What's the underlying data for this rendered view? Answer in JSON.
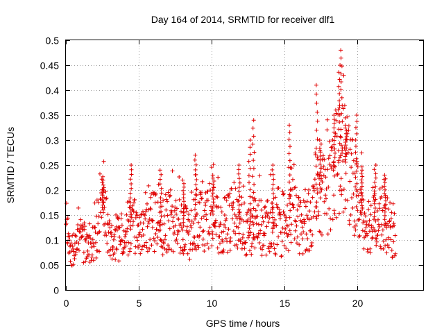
{
  "chart_data": {
    "type": "scatter",
    "title": "Day 164 of 2014, SRMTID for receiver dlf1",
    "xlabel": "GPS time / hours",
    "ylabel": "SRMTID / TECUs",
    "xlim": [
      0,
      24.5
    ],
    "ylim": [
      0,
      0.5
    ],
    "x_ticks": [
      0,
      5,
      10,
      15,
      20
    ],
    "x_tick_labels": [
      "0",
      "5",
      "10",
      "15",
      "20"
    ],
    "y_ticks": [
      0,
      0.05,
      0.1,
      0.15,
      0.2,
      0.25,
      0.3,
      0.35,
      0.4,
      0.45,
      0.5
    ],
    "y_tick_labels": [
      "0",
      "0.05",
      "0.1",
      "0.15",
      "0.2",
      "0.25",
      "0.3",
      "0.35",
      "0.4",
      "0.45",
      "0.5"
    ],
    "grid": true,
    "marker": "plus",
    "series_color": "#e00000",
    "series": [
      {
        "name": "dlf1",
        "profile": [
          [
            0.0,
            0.1
          ],
          [
            0.5,
            0.08
          ],
          [
            1.0,
            0.1
          ],
          [
            1.5,
            0.09
          ],
          [
            2.0,
            0.1
          ],
          [
            2.5,
            0.16
          ],
          [
            3.0,
            0.11
          ],
          [
            3.5,
            0.1
          ],
          [
            4.0,
            0.11
          ],
          [
            4.5,
            0.13
          ],
          [
            5.0,
            0.12
          ],
          [
            5.5,
            0.12
          ],
          [
            6.0,
            0.14
          ],
          [
            6.5,
            0.12
          ],
          [
            7.0,
            0.14
          ],
          [
            7.5,
            0.13
          ],
          [
            8.0,
            0.13
          ],
          [
            8.5,
            0.11
          ],
          [
            9.0,
            0.15
          ],
          [
            9.5,
            0.14
          ],
          [
            10.0,
            0.16
          ],
          [
            10.5,
            0.12
          ],
          [
            11.0,
            0.13
          ],
          [
            11.5,
            0.15
          ],
          [
            12.0,
            0.13
          ],
          [
            12.5,
            0.11
          ],
          [
            13.0,
            0.14
          ],
          [
            13.5,
            0.12
          ],
          [
            14.0,
            0.13
          ],
          [
            14.5,
            0.12
          ],
          [
            15.0,
            0.11
          ],
          [
            15.5,
            0.16
          ],
          [
            16.0,
            0.13
          ],
          [
            16.5,
            0.13
          ],
          [
            17.0,
            0.16
          ],
          [
            17.5,
            0.2
          ],
          [
            18.0,
            0.2
          ],
          [
            18.5,
            0.25
          ],
          [
            19.0,
            0.28
          ],
          [
            19.5,
            0.22
          ],
          [
            20.0,
            0.18
          ],
          [
            20.5,
            0.14
          ],
          [
            21.0,
            0.13
          ],
          [
            21.5,
            0.15
          ],
          [
            22.0,
            0.13
          ],
          [
            22.5,
            0.11
          ]
        ],
        "spikes": [
          [
            2.55,
            0.22
          ],
          [
            4.45,
            0.25
          ],
          [
            6.5,
            0.24
          ],
          [
            8.05,
            0.22
          ],
          [
            8.9,
            0.27
          ],
          [
            10.1,
            0.23
          ],
          [
            11.9,
            0.25
          ],
          [
            12.6,
            0.3
          ],
          [
            12.85,
            0.34
          ],
          [
            14.2,
            0.25
          ],
          [
            15.35,
            0.33
          ],
          [
            17.2,
            0.41
          ],
          [
            17.45,
            0.3
          ],
          [
            18.4,
            0.35
          ],
          [
            18.75,
            0.45
          ],
          [
            18.9,
            0.48
          ],
          [
            19.2,
            0.33
          ],
          [
            19.9,
            0.35
          ],
          [
            20.3,
            0.24
          ],
          [
            21.2,
            0.25
          ],
          [
            21.9,
            0.23
          ]
        ],
        "x_end": 22.6,
        "y_min_observed": 0.035
      }
    ]
  }
}
